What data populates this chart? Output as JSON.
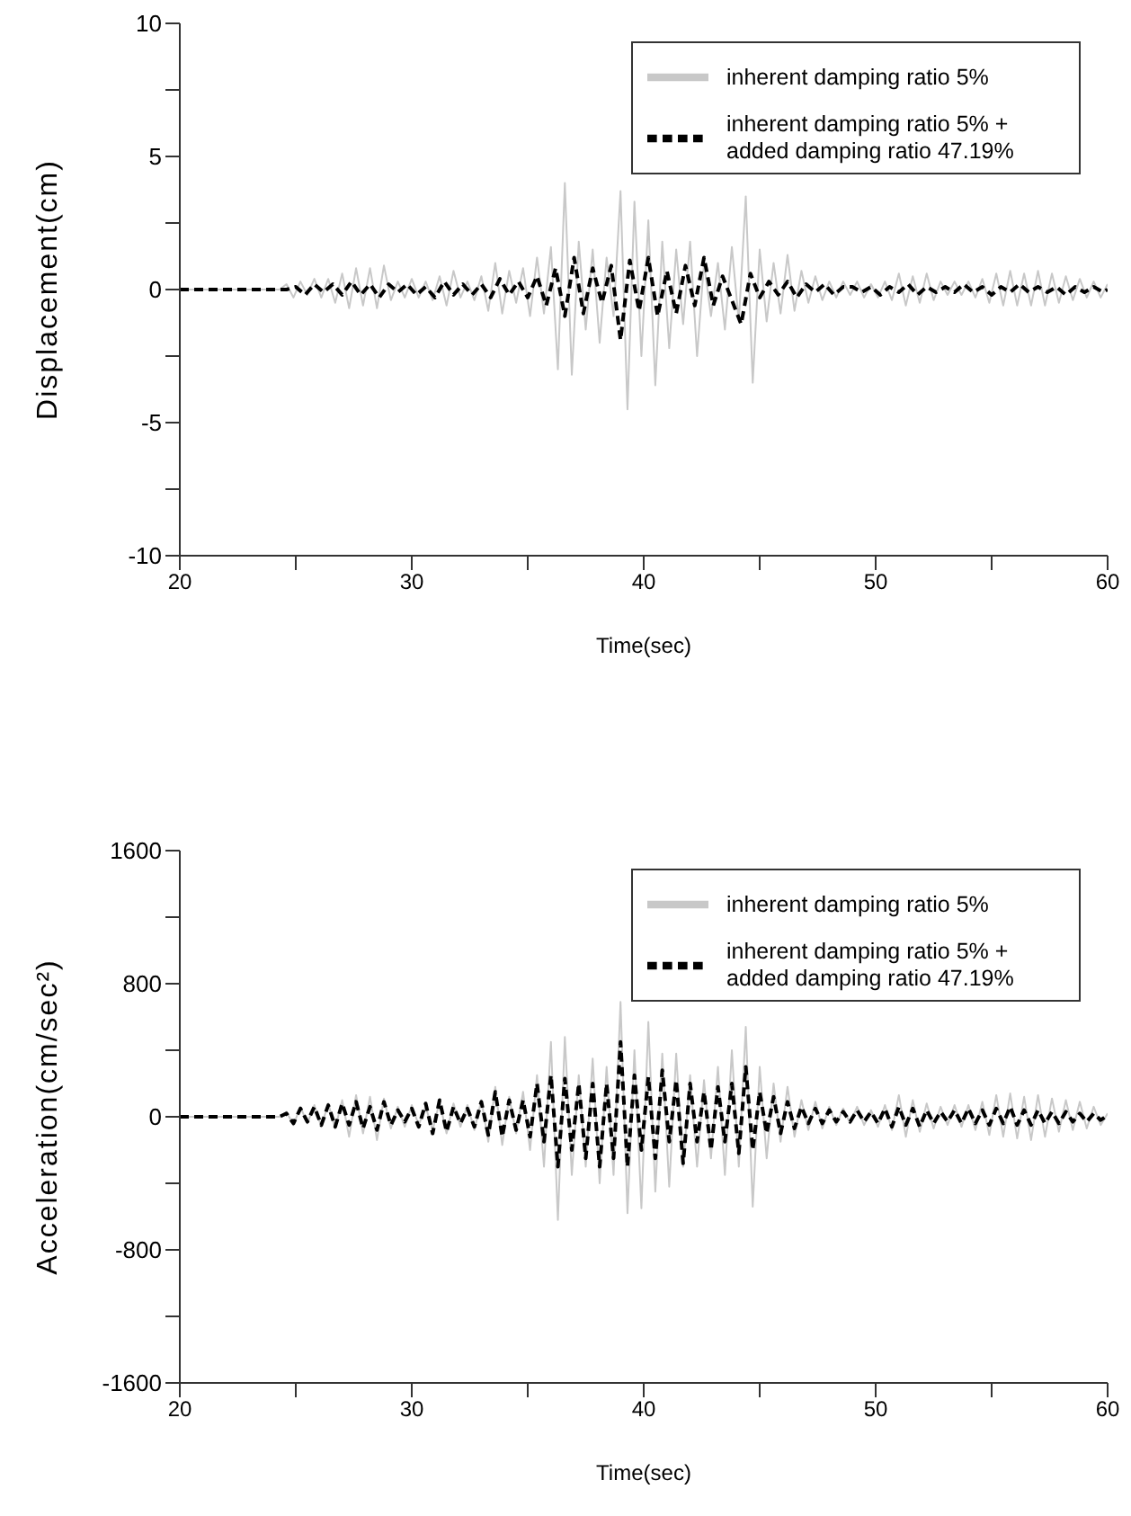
{
  "chart_data": [
    {
      "type": "line",
      "xlabel": "Time(sec)",
      "ylabel": "Displacement(cm)",
      "xlim": [
        20,
        60
      ],
      "xticks": [
        20,
        {
          "value": 25,
          "label": null
        },
        30,
        {
          "value": 35,
          "label": null
        },
        40,
        {
          "value": 45,
          "label": null
        },
        50,
        {
          "value": 55,
          "label": null
        },
        60
      ],
      "ylim": [
        -10,
        10
      ],
      "yticks": [
        -10,
        {
          "value": -7.5,
          "label": null
        },
        -5,
        {
          "value": -2.5,
          "label": null
        },
        0,
        {
          "value": 2.5,
          "label": null
        },
        5,
        {
          "value": 7.5,
          "label": null
        },
        10
      ],
      "legend": "top right",
      "marker": "none",
      "series": [
        {
          "name": "inherent damping ratio 5%",
          "color": "#c8c8c8",
          "line_style": "solid",
          "x": [
            20,
            24.3,
            24.6,
            24.9,
            25.2,
            25.5,
            25.8,
            26.1,
            26.4,
            26.7,
            27,
            27.3,
            27.6,
            27.9,
            28.2,
            28.5,
            28.8,
            29.1,
            29.4,
            29.7,
            30,
            30.3,
            30.6,
            30.9,
            31.2,
            31.5,
            31.8,
            32.1,
            32.4,
            32.7,
            33,
            33.3,
            33.6,
            33.9,
            34.2,
            34.5,
            34.8,
            35.1,
            35.4,
            35.7,
            36,
            36.3,
            36.6,
            36.9,
            37.2,
            37.5,
            37.8,
            38.1,
            38.4,
            38.7,
            39,
            39.3,
            39.6,
            39.9,
            40.2,
            40.5,
            40.8,
            41.1,
            41.4,
            41.7,
            42,
            42.3,
            42.6,
            42.9,
            43.2,
            43.5,
            43.8,
            44.1,
            44.4,
            44.7,
            45,
            45.3,
            45.6,
            45.9,
            46.2,
            46.5,
            46.8,
            47.1,
            47.4,
            47.7,
            48,
            48.3,
            48.6,
            48.9,
            49.2,
            49.5,
            49.8,
            50.1,
            50.4,
            50.7,
            51,
            51.3,
            51.6,
            51.9,
            52.2,
            52.5,
            52.8,
            53.1,
            53.4,
            53.7,
            54,
            54.3,
            54.6,
            54.9,
            55.2,
            55.5,
            55.8,
            56.1,
            56.4,
            56.7,
            57,
            57.3,
            57.6,
            57.9,
            58.2,
            58.5,
            58.8,
            59.1,
            59.4,
            59.7,
            60
          ],
          "values": [
            0,
            0,
            0.2,
            -0.3,
            0.3,
            -0.2,
            0.4,
            -0.3,
            0.4,
            -0.5,
            0.6,
            -0.7,
            0.8,
            -0.6,
            0.8,
            -0.7,
            0.9,
            -0.4,
            0.3,
            -0.3,
            0.4,
            -0.3,
            0.3,
            -0.4,
            0.5,
            -0.6,
            0.7,
            -0.3,
            0.3,
            -0.4,
            0.5,
            -0.8,
            1.0,
            -0.9,
            0.7,
            -0.5,
            0.8,
            -1.0,
            1.2,
            -0.9,
            1.6,
            -3.0,
            4.0,
            -3.2,
            1.8,
            -1.5,
            1.5,
            -2.0,
            1.2,
            -1.0,
            3.7,
            -4.5,
            3.3,
            -2.5,
            2.6,
            -3.6,
            1.8,
            -2.2,
            1.5,
            -1.3,
            1.8,
            -2.5,
            1.0,
            -1.0,
            1.0,
            -1.5,
            1.6,
            -1.2,
            3.5,
            -3.5,
            1.5,
            -1.2,
            1.0,
            -0.9,
            1.3,
            -0.8,
            0.7,
            -0.5,
            0.5,
            -0.4,
            0.3,
            -0.3,
            0.3,
            -0.2,
            0.3,
            -0.3,
            0.2,
            -0.3,
            0.3,
            -0.4,
            0.6,
            -0.6,
            0.5,
            -0.5,
            0.6,
            -0.4,
            0.3,
            -0.2,
            0.3,
            -0.2,
            0.3,
            -0.3,
            0.4,
            -0.5,
            0.6,
            -0.6,
            0.7,
            -0.6,
            0.6,
            -0.6,
            0.7,
            -0.6,
            0.6,
            -0.5,
            0.5,
            -0.4,
            0.4,
            -0.3,
            0.3,
            -0.3,
            0.2
          ]
        },
        {
          "name": "inherent damping ratio 5% + added damping ratio 47.19%",
          "color": "#000000",
          "line_style": "dashed",
          "x": [
            20,
            24.6,
            25,
            25.4,
            25.8,
            26.2,
            26.6,
            27,
            27.4,
            27.8,
            28.2,
            28.6,
            29,
            29.4,
            29.8,
            30.2,
            30.6,
            31,
            31.4,
            31.8,
            32.2,
            32.6,
            33,
            33.4,
            33.8,
            34.2,
            34.6,
            35,
            35.4,
            35.8,
            36.2,
            36.6,
            37,
            37.4,
            37.8,
            38.2,
            38.6,
            39,
            39.4,
            39.8,
            40.2,
            40.6,
            41,
            41.4,
            41.8,
            42.2,
            42.6,
            43,
            43.4,
            43.8,
            44.2,
            44.6,
            45,
            45.4,
            45.8,
            46.2,
            46.6,
            47,
            47.4,
            47.8,
            48.2,
            48.6,
            49,
            49.4,
            49.8,
            50.2,
            50.6,
            51,
            51.4,
            51.8,
            52.2,
            52.6,
            53,
            53.4,
            53.8,
            54.2,
            54.6,
            55,
            55.4,
            55.8,
            56.2,
            56.6,
            57,
            57.4,
            57.8,
            58.2,
            58.6,
            59,
            59.4,
            59.8,
            60
          ],
          "values": [
            0,
            0,
            0.1,
            -0.2,
            0.2,
            -0.1,
            0.2,
            -0.2,
            0.3,
            -0.2,
            0.2,
            -0.3,
            0.2,
            -0.1,
            0.2,
            -0.2,
            0.1,
            -0.3,
            0.3,
            -0.2,
            0.2,
            -0.2,
            0.2,
            -0.3,
            0.4,
            -0.2,
            0.3,
            -0.3,
            0.5,
            -0.6,
            0.8,
            -1.0,
            1.2,
            -0.9,
            0.8,
            -0.5,
            0.9,
            -1.9,
            1.1,
            -0.8,
            1.2,
            -1.0,
            0.7,
            -0.9,
            0.9,
            -0.6,
            1.2,
            -0.6,
            0.5,
            -0.4,
            -1.3,
            0.6,
            -0.3,
            0.3,
            -0.2,
            0.3,
            -0.3,
            0.2,
            -0.1,
            0.2,
            -0.2,
            0.1,
            0.1,
            -0.1,
            0.1,
            -0.2,
            0.1,
            -0.1,
            0.2,
            -0.2,
            0.1,
            -0.1,
            0.1,
            -0.1,
            0.2,
            -0.1,
            0.1,
            -0.2,
            0.1,
            -0.1,
            0.2,
            -0.1,
            0.1,
            -0.1,
            0.1,
            -0.2,
            0.1,
            -0.1,
            0.1,
            -0.1,
            0
          ]
        }
      ]
    },
    {
      "type": "line",
      "xlabel": "Time(sec)",
      "ylabel": "Acceleration(cm/sec²)",
      "xlim": [
        20,
        60
      ],
      "xticks": [
        20,
        {
          "value": 25,
          "label": null
        },
        30,
        {
          "value": 35,
          "label": null
        },
        40,
        {
          "value": 45,
          "label": null
        },
        50,
        {
          "value": 55,
          "label": null
        },
        60
      ],
      "ylim": [
        -1600,
        1600
      ],
      "yticks": [
        -1600,
        {
          "value": -1200,
          "label": null
        },
        -800,
        {
          "value": -400,
          "label": null
        },
        0,
        {
          "value": 400,
          "label": null
        },
        800,
        {
          "value": 1200,
          "label": null
        },
        1600
      ],
      "legend": "top right",
      "marker": "none",
      "series": [
        {
          "name": "inherent damping ratio 5%",
          "color": "#c8c8c8",
          "line_style": "solid",
          "x": [
            20,
            24.3,
            24.6,
            24.9,
            25.2,
            25.5,
            25.8,
            26.1,
            26.4,
            26.7,
            27,
            27.3,
            27.6,
            27.9,
            28.2,
            28.5,
            28.8,
            29.1,
            29.4,
            29.7,
            30,
            30.3,
            30.6,
            30.9,
            31.2,
            31.5,
            31.8,
            32.1,
            32.4,
            32.7,
            33,
            33.3,
            33.6,
            33.9,
            34.2,
            34.5,
            34.8,
            35.1,
            35.4,
            35.7,
            36,
            36.3,
            36.6,
            36.9,
            37.2,
            37.5,
            37.8,
            38.1,
            38.4,
            38.7,
            39,
            39.3,
            39.6,
            39.9,
            40.2,
            40.5,
            40.8,
            41.1,
            41.4,
            41.7,
            42,
            42.3,
            42.6,
            42.9,
            43.2,
            43.5,
            43.8,
            44.1,
            44.4,
            44.7,
            45,
            45.3,
            45.6,
            45.9,
            46.2,
            46.5,
            46.8,
            47.1,
            47.4,
            47.7,
            48,
            48.3,
            48.6,
            48.9,
            49.2,
            49.5,
            49.8,
            50.1,
            50.4,
            50.7,
            51,
            51.3,
            51.6,
            51.9,
            52.2,
            52.5,
            52.8,
            53.1,
            53.4,
            53.7,
            54,
            54.3,
            54.6,
            54.9,
            55.2,
            55.5,
            55.8,
            56.1,
            56.4,
            56.7,
            57,
            57.3,
            57.6,
            57.9,
            58.2,
            58.5,
            58.8,
            59.1,
            59.4,
            59.7,
            60
          ],
          "values": [
            0,
            0,
            30,
            -50,
            60,
            -40,
            70,
            -60,
            80,
            -70,
            100,
            -120,
            130,
            -100,
            120,
            -140,
            110,
            -70,
            60,
            -60,
            70,
            -50,
            60,
            -80,
            90,
            -100,
            80,
            -60,
            70,
            -80,
            100,
            -150,
            180,
            -170,
            120,
            -100,
            150,
            -200,
            250,
            -300,
            450,
            -620,
            480,
            -350,
            250,
            -300,
            350,
            -400,
            300,
            -350,
            690,
            -580,
            400,
            -550,
            570,
            -450,
            380,
            -420,
            380,
            -300,
            250,
            -300,
            220,
            -250,
            300,
            -350,
            400,
            -300,
            540,
            -540,
            300,
            -250,
            200,
            -150,
            180,
            -120,
            100,
            -80,
            90,
            -70,
            60,
            -50,
            50,
            -40,
            60,
            -50,
            40,
            -60,
            70,
            -80,
            130,
            -120,
            100,
            -90,
            80,
            -70,
            60,
            -50,
            70,
            -60,
            70,
            -80,
            90,
            -110,
            130,
            -120,
            140,
            -130,
            120,
            -140,
            130,
            -120,
            110,
            -90,
            100,
            -80,
            90,
            -70,
            60,
            -50,
            20
          ]
        },
        {
          "name": "inherent damping ratio 5% + added damping ratio 47.19%",
          "color": "#000000",
          "line_style": "dashed",
          "x": [
            20,
            24.3,
            24.6,
            24.9,
            25.2,
            25.5,
            25.8,
            26.1,
            26.4,
            26.7,
            27,
            27.3,
            27.6,
            27.9,
            28.2,
            28.5,
            28.8,
            29.1,
            29.4,
            29.7,
            30,
            30.3,
            30.6,
            30.9,
            31.2,
            31.5,
            31.8,
            32.1,
            32.4,
            32.7,
            33,
            33.3,
            33.6,
            33.9,
            34.2,
            34.5,
            34.8,
            35.1,
            35.4,
            35.7,
            36,
            36.3,
            36.6,
            36.9,
            37.2,
            37.5,
            37.8,
            38.1,
            38.4,
            38.7,
            39,
            39.3,
            39.6,
            39.9,
            40.2,
            40.5,
            40.8,
            41.1,
            41.4,
            41.7,
            42,
            42.3,
            42.6,
            42.9,
            43.2,
            43.5,
            43.8,
            44.1,
            44.4,
            44.7,
            45,
            45.3,
            45.6,
            45.9,
            46.2,
            46.5,
            46.8,
            47.1,
            47.4,
            47.7,
            48,
            48.3,
            48.6,
            48.9,
            49.2,
            49.5,
            49.8,
            50.1,
            50.4,
            50.7,
            51,
            51.3,
            51.6,
            51.9,
            52.2,
            52.5,
            52.8,
            53.1,
            53.4,
            53.7,
            54,
            54.3,
            54.6,
            54.9,
            55.2,
            55.5,
            55.8,
            56.1,
            56.4,
            56.7,
            57,
            57.3,
            57.6,
            57.9,
            58.2,
            58.5,
            58.8,
            59.1,
            59.4,
            59.7,
            60
          ],
          "values": [
            0,
            0,
            20,
            -40,
            50,
            -30,
            60,
            -50,
            70,
            -60,
            80,
            -50,
            90,
            -70,
            60,
            -80,
            90,
            -50,
            40,
            -30,
            50,
            -60,
            80,
            -100,
            100,
            -90,
            60,
            -40,
            50,
            -60,
            90,
            -110,
            150,
            -120,
            100,
            -80,
            100,
            -120,
            200,
            -150,
            250,
            -300,
            230,
            -200,
            200,
            -250,
            200,
            -300,
            200,
            -250,
            450,
            -300,
            250,
            -200,
            240,
            -250,
            280,
            -150,
            220,
            -280,
            200,
            -150,
            150,
            -200,
            180,
            -150,
            200,
            -220,
            300,
            -200,
            150,
            -100,
            120,
            -100,
            90,
            -70,
            60,
            -40,
            50,
            -40,
            40,
            -30,
            30,
            -30,
            40,
            -30,
            30,
            -40,
            50,
            -60,
            60,
            -50,
            50,
            -60,
            40,
            -40,
            30,
            -30,
            40,
            -40,
            50,
            -40,
            40,
            -50,
            50,
            -40,
            60,
            -50,
            40,
            -50,
            40,
            -40,
            30,
            -40,
            30,
            -30,
            20,
            -30,
            20,
            -20,
            10
          ]
        }
      ]
    }
  ]
}
